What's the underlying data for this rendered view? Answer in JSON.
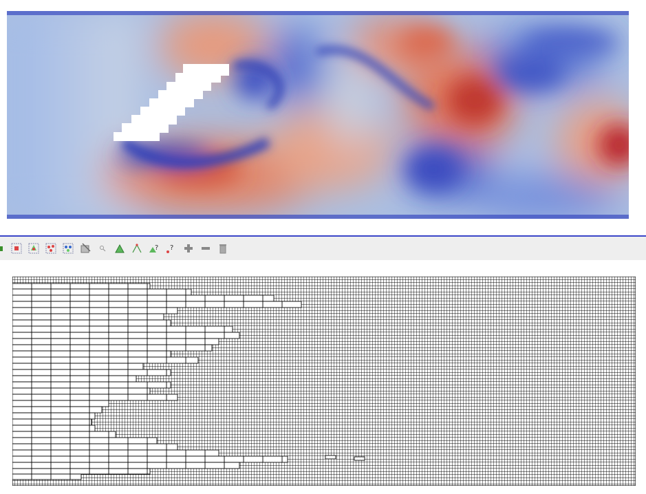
{
  "flow_view": {
    "colormap": [
      "#3b4cc0",
      "#8db0fe",
      "#dddddd",
      "#f4987a",
      "#b40426"
    ],
    "obstacle_color": "#ffffff",
    "border_color": "#3b4cc0"
  },
  "toolbar": {
    "divider_color": "#3a45c8",
    "background": "#eeeeee",
    "buttons": [
      {
        "name": "toolbar-edge-icon",
        "icon": "green-square"
      },
      {
        "name": "select-cells-on-icon",
        "icon": "select-cells-on"
      },
      {
        "name": "select-points-on-icon",
        "icon": "select-points-on"
      },
      {
        "name": "select-cells-through-icon",
        "icon": "select-cells-through"
      },
      {
        "name": "select-points-through-icon",
        "icon": "select-points-through"
      },
      {
        "name": "select-block-icon",
        "icon": "select-block"
      },
      {
        "name": "interactive-select-icon",
        "icon": "magnifier"
      },
      {
        "name": "select-cells-polygon-icon",
        "icon": "green-triangle"
      },
      {
        "name": "select-points-polygon-icon",
        "icon": "points-triangle"
      },
      {
        "name": "hover-cells-icon",
        "icon": "triangle-question"
      },
      {
        "name": "hover-points-icon",
        "icon": "point-question"
      },
      {
        "name": "grow-selection-icon",
        "icon": "plus"
      },
      {
        "name": "shrink-selection-icon",
        "icon": "minus"
      },
      {
        "name": "clear-selection-icon",
        "icon": "trash"
      }
    ]
  },
  "mesh_view": {
    "line_color": "#000000",
    "background": "#ffffff"
  }
}
